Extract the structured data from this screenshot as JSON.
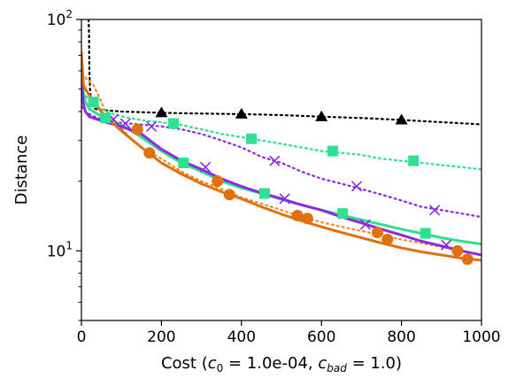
{
  "chart_data": {
    "type": "line",
    "title": "",
    "xlabel": {
      "prefix": "Cost (",
      "c0_sym": "c",
      "c0_sub": "0",
      "c0_val": " = 1.0e-04, ",
      "cbad_sym": "c",
      "cbad_sub": "bad",
      "cbad_val": " = 1.0)"
    },
    "ylabel": "Distance",
    "xlim": [
      0,
      1000
    ],
    "ylim": [
      5,
      100
    ],
    "yscale": "log",
    "x_ticks": [
      0,
      200,
      400,
      600,
      800,
      1000
    ],
    "x_tick_labels": [
      "0",
      "200",
      "400",
      "600",
      "800",
      "1000"
    ],
    "y_ticks": [
      {
        "value": 10,
        "base": "10",
        "exp": "1"
      },
      {
        "value": 100,
        "base": "10",
        "exp": "2"
      }
    ],
    "grid": false,
    "legend": "none",
    "series": [
      {
        "color": "#000000",
        "style": "dotted",
        "marker": "triangle",
        "x": [
          18,
          19,
          20,
          22,
          26,
          35,
          60,
          100,
          200,
          300,
          400,
          500,
          600,
          700,
          800,
          900,
          1000
        ],
        "y": [
          100,
          85,
          60,
          48,
          43,
          41,
          40.5,
          40,
          39.5,
          39.2,
          39,
          38.6,
          38,
          37.5,
          36.8,
          36,
          35.2
        ],
        "marker_x": [
          200,
          400,
          600,
          800
        ],
        "marker_y": [
          39.5,
          39,
          38,
          36.8
        ]
      },
      {
        "color": "#2ee08f",
        "style": "dotted",
        "marker": "square",
        "x": [
          0,
          10,
          25,
          50,
          80,
          120,
          160,
          200,
          250,
          300,
          350,
          400,
          450,
          500,
          550,
          600,
          650,
          700,
          750,
          800,
          850,
          900,
          950,
          1000
        ],
        "y": [
          48,
          47,
          44,
          41,
          39,
          37.5,
          36.5,
          36,
          35,
          33.5,
          32,
          31,
          30,
          29,
          28,
          27,
          26.5,
          26,
          25,
          24.5,
          24,
          23.5,
          23,
          22.5
        ],
        "marker_x": [
          30,
          230,
          425,
          628,
          830
        ],
        "marker_y": [
          44,
          35.5,
          30.5,
          27,
          24.5
        ]
      },
      {
        "color": "#8b2be2",
        "style": "dotted",
        "marker": "x",
        "x": [
          0,
          10,
          25,
          50,
          80,
          120,
          160,
          200,
          250,
          300,
          350,
          400,
          450,
          500,
          550,
          600,
          650,
          700,
          750,
          800,
          850,
          900,
          950,
          1000
        ],
        "y": [
          42,
          40,
          38.5,
          37,
          36,
          35.5,
          35,
          34.5,
          33.5,
          32,
          30,
          28,
          25.5,
          24,
          22,
          20.5,
          19.5,
          18.5,
          17.5,
          16.5,
          15.5,
          15,
          14.5,
          14
        ],
        "marker_x": [
          80,
          175,
          483,
          688,
          883
        ],
        "marker_y": [
          37,
          34.5,
          24.5,
          19,
          15
        ]
      },
      {
        "color": "#f08c28",
        "style": "dotted",
        "marker": "none",
        "x": [
          0,
          10,
          20,
          30,
          40,
          50,
          60,
          80,
          100,
          120,
          150,
          200,
          250,
          300,
          350,
          400,
          450,
          500,
          550,
          600,
          650,
          700,
          750,
          800,
          850,
          900,
          950,
          1000
        ],
        "y": [
          58,
          56,
          54,
          52,
          48,
          44,
          40,
          37,
          34,
          31,
          28,
          25,
          22,
          20,
          18.5,
          17,
          16,
          15,
          14,
          13.3,
          12.7,
          12.2,
          11.7,
          11.2,
          10.8,
          10.4,
          10,
          9.6
        ],
        "marker_x": [],
        "marker_y": []
      },
      {
        "color": "#2ee08f",
        "style": "solid",
        "marker": "square",
        "x": [
          0,
          5,
          10,
          20,
          40,
          60,
          100,
          150,
          200,
          250,
          300,
          350,
          400,
          450,
          500,
          550,
          600,
          650,
          700,
          750,
          800,
          850,
          900,
          950,
          1000
        ],
        "y": [
          60,
          48,
          44,
          41,
          39,
          37.5,
          35,
          31,
          27,
          24,
          22,
          20,
          18.7,
          17.7,
          16.7,
          15.8,
          15,
          14.3,
          13.6,
          13,
          12.4,
          11.9,
          11.4,
          11,
          10.7
        ],
        "marker_x": [
          60,
          255,
          458,
          653,
          860
        ],
        "marker_y": [
          37.5,
          24,
          17.7,
          14.5,
          11.9
        ]
      },
      {
        "color": "#8b2be2",
        "style": "solid",
        "marker": "x",
        "x": [
          0,
          5,
          10,
          20,
          40,
          60,
          100,
          150,
          200,
          250,
          300,
          350,
          400,
          450,
          500,
          550,
          600,
          650,
          700,
          750,
          800,
          850,
          900,
          950,
          1000
        ],
        "y": [
          55,
          43,
          40,
          38,
          37,
          36,
          34.5,
          32,
          27.5,
          24.5,
          22.5,
          20.5,
          19,
          17.8,
          16.8,
          15.8,
          15,
          14,
          13.2,
          12.4,
          11.7,
          11,
          10.5,
          10,
          9.6
        ],
        "marker_x": [
          110,
          310,
          508,
          710,
          912
        ],
        "marker_y": [
          35.5,
          23,
          16.8,
          13,
          10.6
        ]
      },
      {
        "color": "#e07010",
        "style": "solid",
        "marker": "circle",
        "x": [
          0,
          5,
          10,
          20,
          40,
          60,
          100,
          150,
          200,
          250,
          300,
          350,
          400,
          450,
          500,
          550,
          600,
          650,
          700,
          750,
          800,
          850,
          900,
          950,
          1000
        ],
        "y": [
          72,
          52,
          50,
          47,
          42,
          38,
          33,
          28,
          24,
          21.5,
          19.5,
          18,
          16.8,
          15.5,
          14.4,
          13.5,
          12.7,
          12,
          11.4,
          10.8,
          10.3,
          9.9,
          9.6,
          9.3,
          9.1
        ],
        "marker_x": [
          140,
          170,
          340,
          370,
          540,
          565,
          740,
          765,
          940,
          965
        ],
        "marker_y": [
          33.5,
          26.5,
          20,
          17.5,
          14.2,
          13.8,
          12,
          11.2,
          10,
          9.2
        ]
      }
    ]
  }
}
